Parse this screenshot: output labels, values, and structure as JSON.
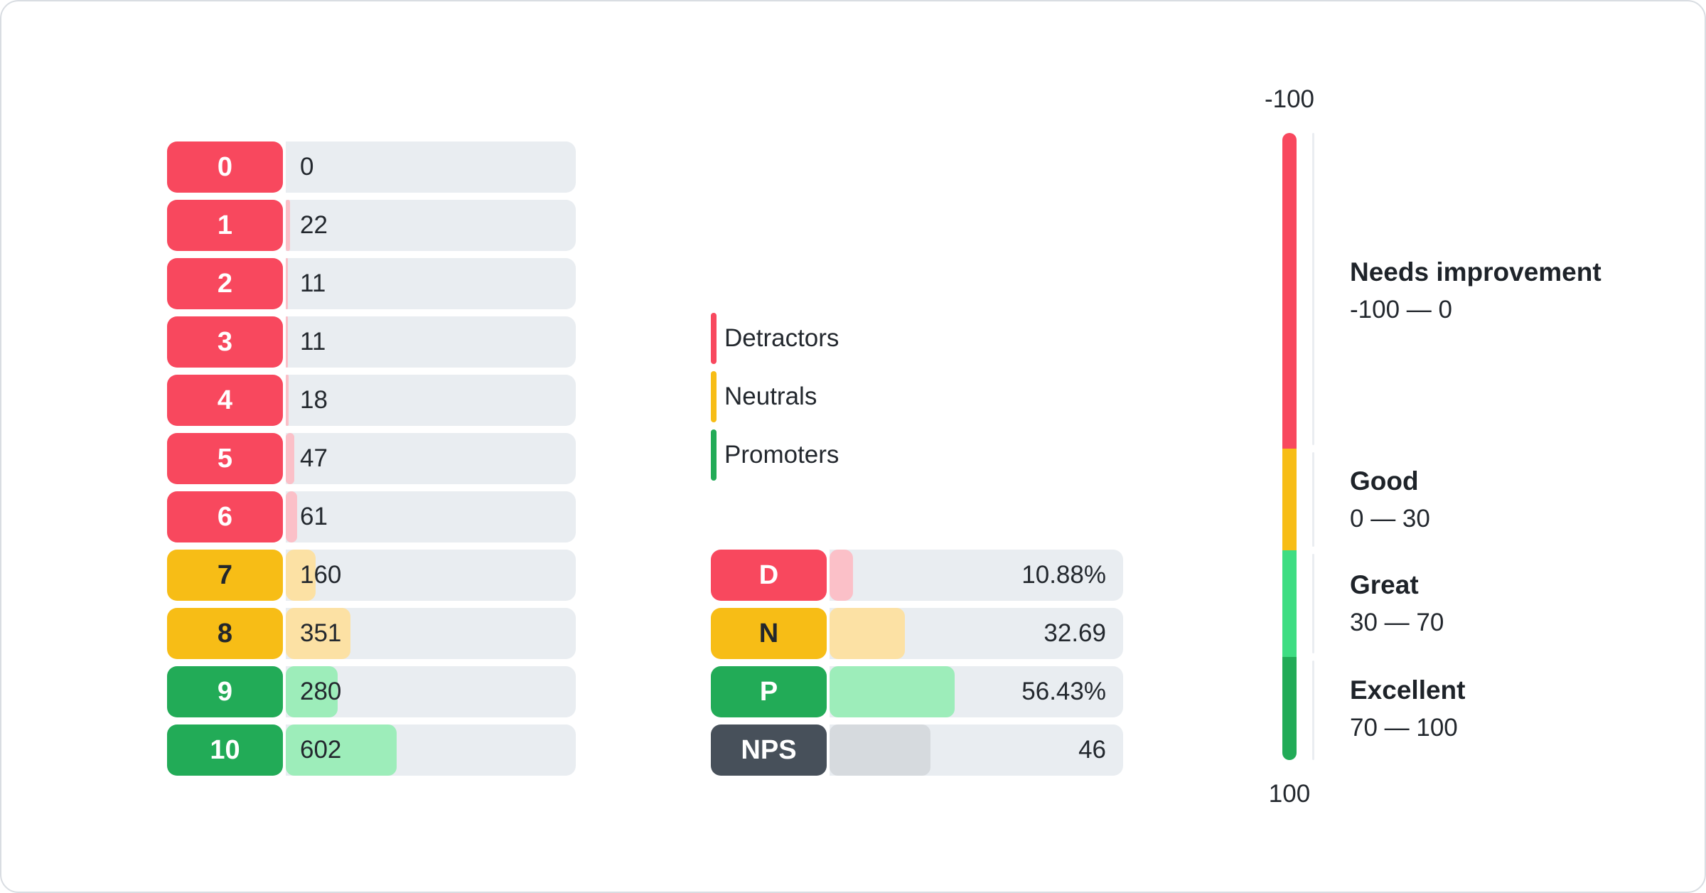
{
  "colors": {
    "red": "#F8485E",
    "red-light": "#FBC0C8",
    "yellow": "#F7BD16",
    "yellow-light": "#FCE1A4",
    "green": "#22AB57",
    "green-light": "#9DEDBA",
    "green-bright": "#3EDD82",
    "slate": "#47505A",
    "slate-light": "#D6DADE",
    "track": "#E9EDF1",
    "rail": "#EAEDF1"
  },
  "distribution": {
    "rows": [
      {
        "score": "0",
        "count": "0",
        "group": "detractor",
        "fill_pct": 0
      },
      {
        "score": "1",
        "count": "22",
        "group": "detractor",
        "fill_pct": 1.4
      },
      {
        "score": "2",
        "count": "11",
        "group": "detractor",
        "fill_pct": 0.7
      },
      {
        "score": "3",
        "count": "11",
        "group": "detractor",
        "fill_pct": 0.7
      },
      {
        "score": "4",
        "count": "18",
        "group": "detractor",
        "fill_pct": 1.1
      },
      {
        "score": "5",
        "count": "47",
        "group": "detractor",
        "fill_pct": 3.0
      },
      {
        "score": "6",
        "count": "61",
        "group": "detractor",
        "fill_pct": 3.9
      },
      {
        "score": "7",
        "count": "160",
        "group": "neutral",
        "fill_pct": 10.2
      },
      {
        "score": "8",
        "count": "351",
        "group": "neutral",
        "fill_pct": 22.3
      },
      {
        "score": "9",
        "count": "280",
        "group": "promoter",
        "fill_pct": 17.8
      },
      {
        "score": "10",
        "count": "602",
        "group": "promoter",
        "fill_pct": 38.2
      }
    ]
  },
  "legend": {
    "items": [
      {
        "label": "Detractors",
        "group": "detractor"
      },
      {
        "label": "Neutrals",
        "group": "neutral"
      },
      {
        "label": "Promoters",
        "group": "promoter"
      }
    ]
  },
  "summary": {
    "rows": [
      {
        "label": "D",
        "value": "10.88%",
        "group": "detractor",
        "fill_pct": 8.0
      },
      {
        "label": "N",
        "value": "32.69",
        "group": "neutral",
        "fill_pct": 25.6
      },
      {
        "label": "P",
        "value": "56.43%",
        "group": "promoter",
        "fill_pct": 42.5
      },
      {
        "label": "NPS",
        "value": "46",
        "group": "nps",
        "fill_pct": 34.3
      }
    ]
  },
  "gauge": {
    "top_label": "-100",
    "bottom_label": "100",
    "segments": [
      {
        "name": "Needs improvement",
        "range_label": "-100 — 0",
        "color": "red",
        "frac": 0.503
      },
      {
        "name": "Good",
        "range_label": "0 — 30",
        "color": "yellow",
        "frac": 0.163
      },
      {
        "name": "Great",
        "range_label": "30 — 70",
        "color": "green-bright",
        "frac": 0.17
      },
      {
        "name": "Excellent",
        "range_label": "70 — 100",
        "color": "green",
        "frac": 0.164
      }
    ]
  },
  "chart_data": [
    {
      "type": "bar",
      "title": "NPS score distribution",
      "orientation": "horizontal",
      "categories": [
        "0",
        "1",
        "2",
        "3",
        "4",
        "5",
        "6",
        "7",
        "8",
        "9",
        "10"
      ],
      "values": [
        0,
        22,
        11,
        11,
        18,
        47,
        61,
        160,
        351,
        280,
        602
      ],
      "groups": {
        "detractors": "scores 0-6",
        "neutrals": "scores 7-8",
        "promoters": "scores 9-10"
      }
    },
    {
      "type": "bar",
      "title": "NPS summary",
      "orientation": "horizontal",
      "categories": [
        "D",
        "N",
        "P",
        "NPS"
      ],
      "values": [
        10.88,
        32.69,
        56.43,
        46
      ],
      "value_labels": [
        "10.88%",
        "32.69",
        "56.43%",
        "46"
      ],
      "legend_entries": [
        "Detractors",
        "Neutrals",
        "Promoters"
      ],
      "legend_position": "left of summary, stacked vertically"
    },
    {
      "type": "gauge",
      "title": "NPS rating scale",
      "axis_range": [
        -100,
        100
      ],
      "bands": [
        {
          "label": "Needs improvement",
          "range": [
            -100,
            0
          ]
        },
        {
          "label": "Good",
          "range": [
            0,
            30
          ]
        },
        {
          "label": "Great",
          "range": [
            30,
            70
          ]
        },
        {
          "label": "Excellent",
          "range": [
            70,
            100
          ]
        }
      ]
    }
  ]
}
